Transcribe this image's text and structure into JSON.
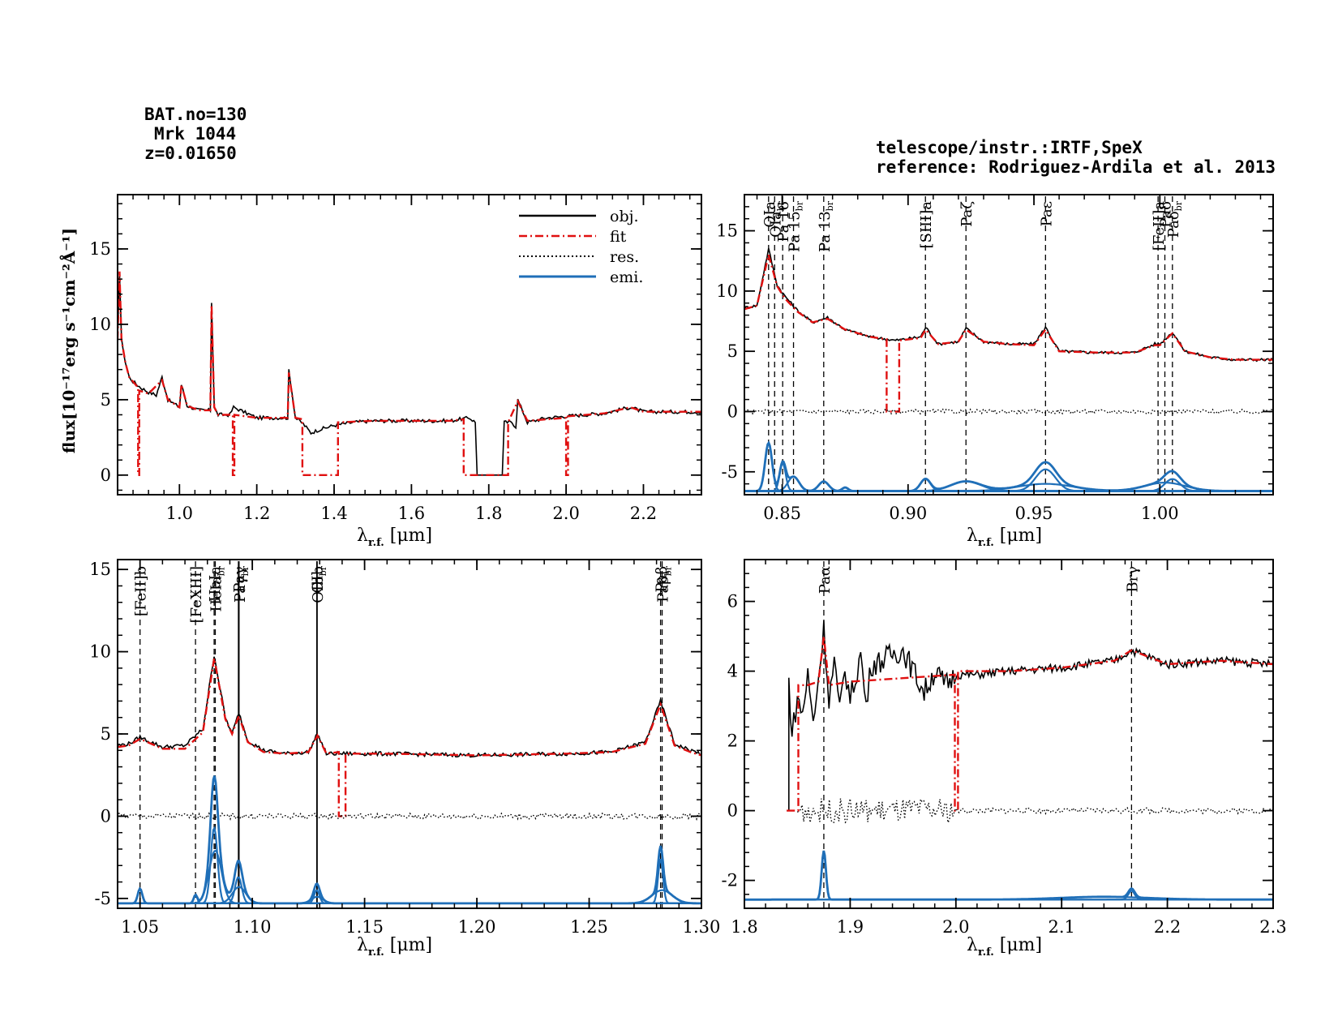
{
  "header": {
    "bat_no": "BAT.no=130",
    "object": "Mrk 1044",
    "redshift": "z=0.01650",
    "telescope": "telescope/instr.:IRTF,SpeX",
    "reference": "reference: Rodriguez-Ardila et al. 2013"
  },
  "colors": {
    "obj": "#000000",
    "fit": "#e01010",
    "res": "#000000",
    "emi": "#1f6fb8"
  },
  "legend": {
    "obj": "obj.",
    "fit": "fit",
    "res": "res.",
    "emi": "emi."
  },
  "axis_labels": {
    "ylabel": "flux[10⁻¹⁷erg s⁻¹cm⁻²Å⁻¹]",
    "xlabel": "λr.f. [μm]",
    "xlabel_main": "λ",
    "xlabel_sub": "r.f.",
    "xlabel_unit": " [μm]"
  },
  "chart_data": [
    {
      "id": "overview",
      "type": "line",
      "xlim": [
        0.84,
        2.35
      ],
      "ylim": [
        -1.3,
        18.6
      ],
      "xticks": [
        1.0,
        1.2,
        1.4,
        1.6,
        1.8,
        2.0,
        2.2
      ],
      "xtick_labels": [
        "1.0",
        "1.2",
        "1.4",
        "1.6",
        "1.8",
        "2.0",
        "2.2"
      ],
      "yticks": [
        0,
        5,
        10,
        15
      ],
      "ytick_labels": [
        "0",
        "5",
        "10",
        "15"
      ],
      "series": [
        {
          "name": "obj.",
          "style": "solid",
          "color": "#000000",
          "x": [
            0.84,
            0.845,
            0.85,
            0.86,
            0.87,
            0.88,
            0.9,
            0.92,
            0.94,
            0.955,
            0.97,
            1.0,
            1.005,
            1.02,
            1.05,
            1.08,
            1.083,
            1.09,
            1.1,
            1.13,
            1.14,
            1.2,
            1.28,
            1.283,
            1.3,
            1.32,
            1.34,
            1.36,
            1.4,
            1.45,
            1.5,
            1.6,
            1.7,
            1.75,
            1.765,
            1.77,
            1.835,
            1.84,
            1.86,
            1.87,
            1.875,
            1.9,
            1.95,
            2.0,
            2.1,
            2.166,
            2.2,
            2.3,
            2.35
          ],
          "y": [
            9.0,
            13.5,
            9.0,
            7.5,
            6.5,
            6.2,
            5.8,
            5.5,
            5.3,
            6.5,
            5.0,
            4.5,
            6.0,
            4.6,
            4.3,
            4.3,
            11.5,
            4.5,
            4.0,
            4.0,
            4.5,
            3.8,
            3.8,
            7.0,
            3.8,
            3.4,
            2.8,
            3.0,
            3.3,
            3.5,
            3.6,
            3.6,
            3.6,
            3.8,
            3.5,
            0,
            0,
            3.5,
            3.5,
            3.2,
            5.0,
            3.5,
            3.8,
            3.9,
            4.1,
            4.5,
            4.2,
            4.2,
            4.2
          ]
        },
        {
          "name": "fit",
          "style": "dashdot",
          "color": "#e01010",
          "x": [
            0.84,
            0.845,
            0.85,
            0.86,
            0.87,
            0.88,
            0.893,
            0.893,
            0.896,
            0.896,
            0.92,
            0.955,
            0.97,
            1.0,
            1.005,
            1.02,
            1.05,
            1.08,
            1.083,
            1.09,
            1.1,
            1.138,
            1.138,
            1.142,
            1.142,
            1.2,
            1.28,
            1.283,
            1.3,
            1.318,
            1.318,
            1.41,
            1.41,
            1.5,
            1.6,
            1.7,
            1.735,
            1.735,
            1.85,
            1.85,
            1.875,
            1.9,
            2.0,
            2.0,
            2.005,
            2.005,
            2.1,
            2.166,
            2.2,
            2.3,
            2.35
          ],
          "y": [
            9.0,
            13.5,
            9.0,
            7.5,
            6.5,
            6.2,
            5.8,
            0,
            0,
            5.6,
            5.4,
            6.3,
            5.0,
            4.5,
            6.0,
            4.6,
            4.3,
            4.3,
            11.3,
            4.5,
            4.0,
            4.0,
            0,
            0,
            4.0,
            3.8,
            3.8,
            6.8,
            3.8,
            3.7,
            0,
            0,
            3.5,
            3.6,
            3.6,
            3.6,
            3.7,
            0,
            0,
            3.5,
            4.9,
            3.6,
            3.8,
            0,
            0,
            3.9,
            4.1,
            4.5,
            4.2,
            4.2,
            4.2
          ]
        }
      ],
      "legend_position": "top-right"
    },
    {
      "id": "zoom-0.84-1.05",
      "type": "line",
      "xlim": [
        0.835,
        1.045
      ],
      "ylim": [
        -6.9,
        18.0
      ],
      "xticks": [
        0.85,
        0.9,
        0.95,
        1.0
      ],
      "xtick_labels": [
        "0.85",
        "0.90",
        "0.95",
        "1.00"
      ],
      "yticks": [
        -5,
        0,
        5,
        10,
        15
      ],
      "ytick_labels": [
        "-5",
        "0",
        "5",
        "10",
        "15"
      ],
      "lines": [
        {
          "x": 0.8446,
          "label": "OIa"
        },
        {
          "x": 0.847,
          "label": "OIa_br"
        },
        {
          "x": 0.8502,
          "label": "Pa 16"
        },
        {
          "x": 0.8545,
          "label": "Pa 15_br"
        },
        {
          "x": 0.8665,
          "label": "Pa 13_br"
        },
        {
          "x": 0.9069,
          "label": "[SIII]a"
        },
        {
          "x": 0.923,
          "label": "Paζ"
        },
        {
          "x": 0.9546,
          "label": "Paε"
        },
        {
          "x": 0.9993,
          "label": "[FeII]a"
        },
        {
          "x": 1.002,
          "label": "Paδ"
        },
        {
          "x": 1.005,
          "label": "Paδ_br"
        }
      ],
      "series": [
        {
          "name": "obj.",
          "x": [
            0.835,
            0.84,
            0.8446,
            0.848,
            0.851,
            0.856,
            0.862,
            0.868,
            0.875,
            0.885,
            0.895,
            0.905,
            0.907,
            0.912,
            0.92,
            0.923,
            0.93,
            0.94,
            0.95,
            0.9546,
            0.96,
            0.975,
            0.99,
            0.998,
            1.0,
            1.005,
            1.01,
            1.02,
            1.03,
            1.045
          ],
          "y": [
            8.6,
            8.8,
            13.5,
            10.5,
            9.6,
            8.4,
            7.4,
            7.8,
            6.8,
            6.2,
            5.9,
            6.2,
            7.0,
            5.6,
            5.8,
            6.9,
            5.8,
            5.6,
            5.6,
            7.0,
            5.0,
            4.9,
            4.9,
            5.6,
            5.6,
            6.6,
            5.0,
            4.5,
            4.3,
            4.3
          ]
        },
        {
          "name": "fit",
          "x": [
            0.835,
            0.84,
            0.8446,
            0.848,
            0.851,
            0.856,
            0.862,
            0.868,
            0.875,
            0.885,
            0.8915,
            0.8915,
            0.8965,
            0.8965,
            0.905,
            0.907,
            0.912,
            0.92,
            0.923,
            0.93,
            0.94,
            0.95,
            0.9546,
            0.96,
            0.975,
            0.99,
            0.998,
            1.0,
            1.005,
            1.01,
            1.02,
            1.03,
            1.045
          ],
          "y": [
            8.5,
            8.8,
            13.0,
            10.4,
            9.4,
            8.3,
            7.4,
            7.7,
            6.8,
            6.2,
            6.0,
            0,
            0,
            5.9,
            6.1,
            6.8,
            5.6,
            5.8,
            6.8,
            5.8,
            5.6,
            5.5,
            6.8,
            5.0,
            4.9,
            4.9,
            5.5,
            5.5,
            6.5,
            5.0,
            4.5,
            4.3,
            4.3
          ]
        },
        {
          "name": "res.",
          "x": [
            0.835,
            0.86,
            0.885,
            0.91,
            0.935,
            0.96,
            0.985,
            1.01,
            1.045
          ],
          "y": [
            0.0,
            0.0,
            0.0,
            0.0,
            0.0,
            0.0,
            0.0,
            0.0,
            0.0
          ]
        },
        {
          "name": "emi.",
          "baseline": -6.6,
          "components": [
            {
              "center": 0.8446,
              "height": 4.0,
              "width": 0.0014
            },
            {
              "center": 0.8502,
              "height": 2.3,
              "width": 0.0012
            },
            {
              "center": 0.8545,
              "height": 1.2,
              "width": 0.0022
            },
            {
              "center": 0.8665,
              "height": 0.8,
              "width": 0.002
            },
            {
              "center": 0.875,
              "height": 0.3,
              "width": 0.0012
            },
            {
              "center": 0.9069,
              "height": 1.0,
              "width": 0.002
            },
            {
              "center": 0.923,
              "height": 0.8,
              "width": 0.006
            },
            {
              "center": 0.9546,
              "height": 1.8,
              "width": 0.004
            },
            {
              "center": 0.9546,
              "height": 0.6,
              "width": 0.011
            },
            {
              "center": 1.002,
              "height": 0.7,
              "width": 0.008
            },
            {
              "center": 1.005,
              "height": 1.0,
              "width": 0.003
            }
          ]
        }
      ]
    },
    {
      "id": "zoom-1.04-1.30",
      "type": "line",
      "xlim": [
        1.04,
        1.3
      ],
      "ylim": [
        -5.6,
        15.6
      ],
      "xticks": [
        1.05,
        1.1,
        1.15,
        1.2,
        1.25,
        1.3
      ],
      "xtick_labels": [
        "1.05",
        "1.10",
        "1.15",
        "1.20",
        "1.25",
        "1.30"
      ],
      "yticks": [
        -5,
        0,
        5,
        10,
        15
      ],
      "ytick_labels": [
        "-5",
        "0",
        "5",
        "10",
        "15"
      ],
      "lines": [
        {
          "x": 1.05,
          "label": "[FeII]b",
          "style": "dashed"
        },
        {
          "x": 1.0747,
          "label": "[FeXIII]",
          "style": "dashed"
        },
        {
          "x": 1.083,
          "label": "HeIa",
          "style": "dashed"
        },
        {
          "x": 1.0835,
          "label": "HeIa_br",
          "style": "dashed"
        },
        {
          "x": 1.0938,
          "label": "Paγ",
          "style": "solid"
        },
        {
          "x": 1.0941,
          "label": "Paγ_br",
          "style": "solid"
        },
        {
          "x": 1.1287,
          "label": "OIb",
          "style": "solid"
        },
        {
          "x": 1.1289,
          "label": "OIb_br",
          "style": "solid"
        },
        {
          "x": 1.2818,
          "label": "Paβ",
          "style": "dashed"
        },
        {
          "x": 1.2825,
          "label": "Paβ_br",
          "style": "dashed"
        }
      ],
      "series": [
        {
          "name": "obj.",
          "x": [
            1.04,
            1.045,
            1.05,
            1.06,
            1.07,
            1.078,
            1.083,
            1.088,
            1.091,
            1.094,
            1.098,
            1.105,
            1.115,
            1.125,
            1.129,
            1.133,
            1.14,
            1.16,
            1.2,
            1.24,
            1.26,
            1.275,
            1.2818,
            1.288,
            1.295,
            1.3
          ],
          "y": [
            4.3,
            4.4,
            4.8,
            4.2,
            4.3,
            5.3,
            9.8,
            6.0,
            5.0,
            6.3,
            4.6,
            4.0,
            3.8,
            3.9,
            5.0,
            3.8,
            3.8,
            3.8,
            3.7,
            3.8,
            3.9,
            4.5,
            7.0,
            4.4,
            4.0,
            3.8
          ]
        },
        {
          "name": "fit",
          "x": [
            1.04,
            1.045,
            1.05,
            1.06,
            1.07,
            1.078,
            1.083,
            1.088,
            1.091,
            1.094,
            1.098,
            1.105,
            1.115,
            1.125,
            1.129,
            1.133,
            1.1385,
            1.1385,
            1.1415,
            1.1415,
            1.16,
            1.2,
            1.24,
            1.26,
            1.275,
            1.2818,
            1.288,
            1.295,
            1.3
          ],
          "y": [
            4.2,
            4.3,
            4.7,
            4.1,
            4.1,
            5.1,
            9.6,
            5.9,
            5.0,
            6.1,
            4.5,
            3.9,
            3.8,
            3.9,
            4.9,
            3.8,
            3.9,
            0,
            0,
            3.8,
            3.8,
            3.7,
            3.8,
            3.9,
            4.4,
            6.8,
            4.3,
            3.9,
            3.7
          ]
        },
        {
          "name": "res.",
          "x": [
            1.04,
            1.08,
            1.12,
            1.16,
            1.2,
            1.24,
            1.3
          ],
          "y": [
            0,
            0,
            0,
            0,
            0,
            0,
            0
          ]
        },
        {
          "name": "emi.",
          "baseline": -5.3,
          "components": [
            {
              "center": 1.05,
              "height": 0.9,
              "width": 0.001
            },
            {
              "center": 1.0747,
              "height": 0.5,
              "width": 0.0008
            },
            {
              "center": 1.083,
              "height": 4.6,
              "width": 0.0015
            },
            {
              "center": 1.0835,
              "height": 3.2,
              "width": 0.0028
            },
            {
              "center": 1.0938,
              "height": 1.6,
              "width": 0.0015
            },
            {
              "center": 1.0941,
              "height": 1.0,
              "width": 0.003
            },
            {
              "center": 1.1287,
              "height": 0.8,
              "width": 0.0012
            },
            {
              "center": 1.1289,
              "height": 0.4,
              "width": 0.0025
            },
            {
              "center": 1.2818,
              "height": 2.7,
              "width": 0.0011
            },
            {
              "center": 1.2825,
              "height": 0.8,
              "width": 0.0045
            }
          ]
        }
      ]
    },
    {
      "id": "zoom-1.80-2.30",
      "type": "line",
      "xlim": [
        1.8,
        2.3
      ],
      "ylim": [
        -2.8,
        7.2
      ],
      "xticks": [
        1.8,
        1.9,
        2.0,
        2.1,
        2.2,
        2.3
      ],
      "xtick_labels": [
        "1.8",
        "1.9",
        "2.0",
        "2.1",
        "2.2",
        "2.3"
      ],
      "yticks": [
        -2,
        0,
        2,
        4,
        6
      ],
      "ytick_labels": [
        "-2",
        "0",
        "2",
        "4",
        "6"
      ],
      "lines": [
        {
          "x": 1.8751,
          "label": "Paα"
        },
        {
          "x": 2.1661,
          "label": "Brγ"
        }
      ],
      "series": [
        {
          "name": "obj.",
          "x": [
            1.84,
            1.842,
            1.842,
            1.845,
            1.85,
            1.855,
            1.86,
            1.865,
            1.87,
            1.8751,
            1.88,
            1.885,
            1.89,
            1.895,
            1.9,
            1.905,
            1.91,
            1.915,
            1.92,
            1.93,
            1.94,
            1.95,
            1.96,
            1.97,
            1.98,
            1.99,
            2.0,
            2.02,
            2.05,
            2.1,
            2.15,
            2.166,
            2.2,
            2.25,
            2.3
          ],
          "y": [
            0,
            0,
            3.7,
            2.2,
            3.2,
            2.8,
            3.9,
            2.5,
            3.8,
            5.2,
            3.2,
            4.3,
            2.8,
            4.1,
            3.2,
            3.8,
            4.5,
            3.0,
            4.2,
            4.3,
            4.5,
            4.6,
            4.0,
            3.4,
            4.0,
            3.6,
            3.9,
            3.9,
            4.0,
            4.1,
            4.3,
            4.6,
            4.2,
            4.3,
            4.2
          ]
        },
        {
          "name": "fit",
          "x": [
            1.84,
            1.851,
            1.851,
            1.86,
            1.87,
            1.8751,
            1.88,
            1.9,
            1.95,
            1.999,
            1.999,
            2.002,
            2.002,
            2.05,
            2.1,
            2.15,
            2.166,
            2.2,
            2.25,
            2.3
          ],
          "y": [
            0,
            0,
            3.6,
            3.6,
            3.7,
            5.0,
            3.6,
            3.7,
            3.8,
            3.9,
            0,
            0,
            4.0,
            4.0,
            4.1,
            4.3,
            4.6,
            4.2,
            4.3,
            4.2
          ]
        },
        {
          "name": "res.",
          "x": [
            1.85,
            1.9,
            1.95,
            2.0,
            2.05,
            2.1,
            2.15,
            2.2,
            2.25,
            2.3
          ],
          "y": [
            0,
            0,
            0,
            0,
            0,
            0,
            0,
            0,
            0,
            0
          ]
        },
        {
          "name": "emi.",
          "baseline": -2.55,
          "components": [
            {
              "center": 1.8751,
              "height": 1.4,
              "width": 0.002
            },
            {
              "center": 2.1661,
              "height": 0.25,
              "width": 0.003
            },
            {
              "center": 2.14,
              "height": 0.08,
              "width": 0.04
            }
          ]
        }
      ]
    }
  ]
}
